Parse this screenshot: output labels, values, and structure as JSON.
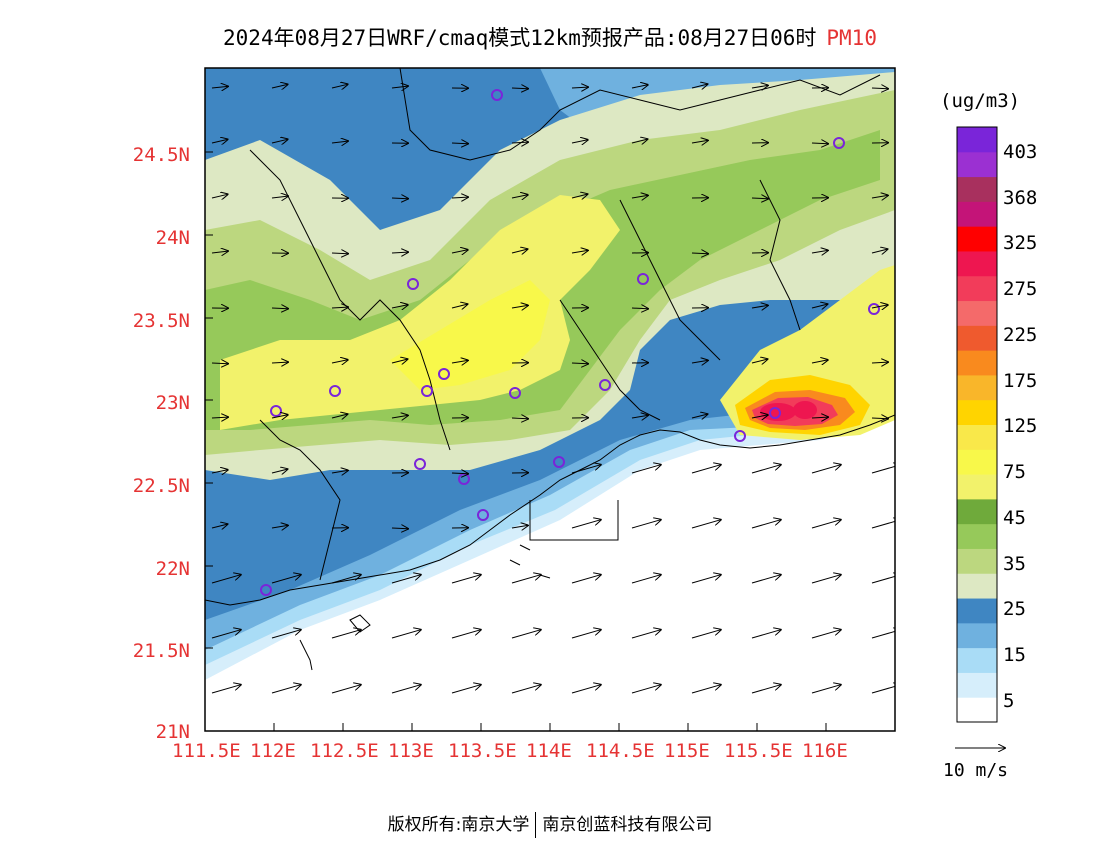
{
  "title": {
    "text": "2024年08月27日WRF/cmaq模式12km预报产品:08月27日06时",
    "pollutant": "PM10"
  },
  "map": {
    "lat_labels": [
      "24.5N",
      "24N",
      "23.5N",
      "23N",
      "22.5N",
      "22N",
      "21.5N",
      "21N"
    ],
    "lon_labels": [
      "111.5E",
      "112E",
      "112.5E",
      "113E",
      "113.5E",
      "114E",
      "114.5E",
      "115E",
      "115.5E",
      "116E"
    ],
    "lat_range": [
      21.0,
      25.0
    ],
    "lon_range": [
      111.5,
      116.5
    ]
  },
  "colorbar": {
    "unit": "(ug/m3)",
    "labels": [
      "403",
      "368",
      "325",
      "275",
      "225",
      "175",
      "125",
      "75",
      "45",
      "35",
      "25",
      "15",
      "5"
    ],
    "colors": [
      "#ffffff",
      "#d6eefb",
      "#a9dcf6",
      "#6fb1df",
      "#3f86c2",
      "#dde8c3",
      "#bcd77f",
      "#96c95a",
      "#6faa3b",
      "#f2f26b",
      "#f8f84a",
      "#f9e84a",
      "#ffd400",
      "#f9b62a",
      "#f98a1e",
      "#ef5a2e",
      "#f46a6a",
      "#f23c5a",
      "#ee1650",
      "#ff0000",
      "#c41478",
      "#a8305e",
      "#9b30d2",
      "#7a25d9"
    ]
  },
  "wind_reference": {
    "label": "10 m/s"
  },
  "credit": {
    "left": "版权所有:南京大学",
    "right": "南京创蓝科技有限公司"
  }
}
